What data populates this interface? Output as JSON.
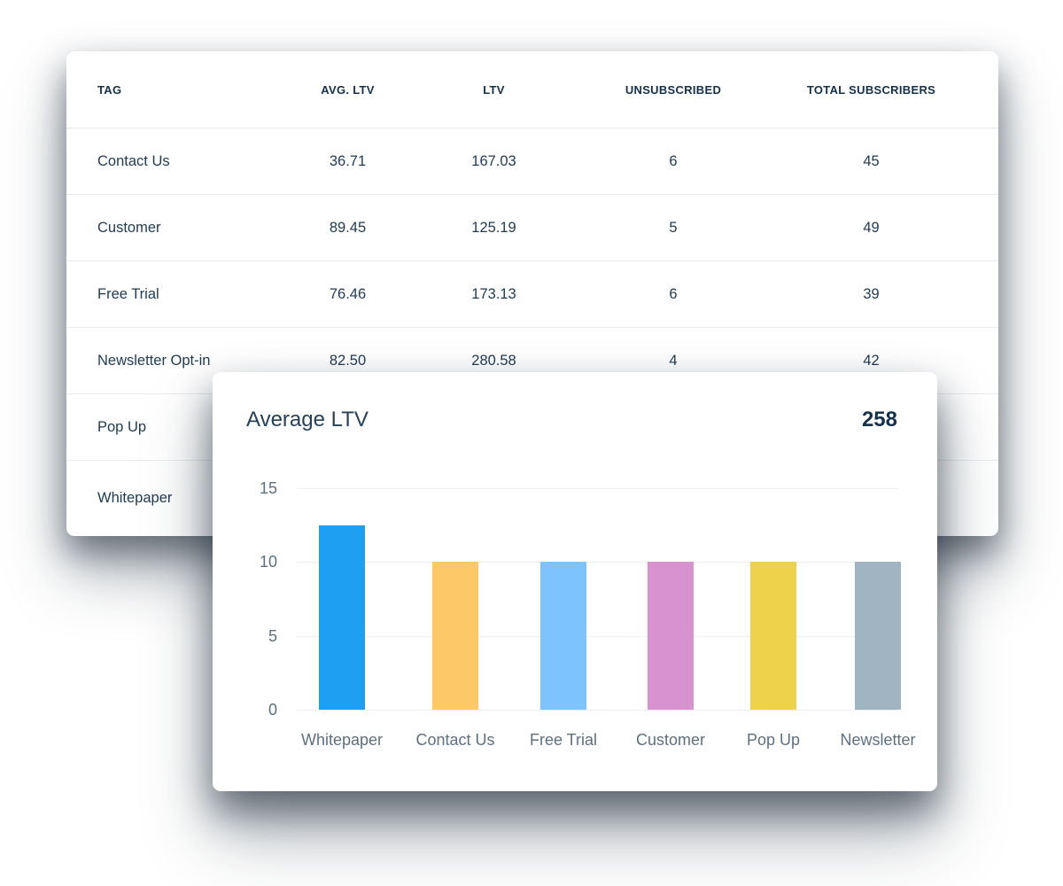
{
  "table": {
    "columns": [
      {
        "label": "TAG"
      },
      {
        "label": "AVG. LTV"
      },
      {
        "label": "LTV"
      },
      {
        "label": "UNSUBSCRIBED"
      },
      {
        "label": "TOTAL SUBSCRIBERS"
      }
    ],
    "rows": [
      {
        "tag": "Contact Us",
        "avg_ltv": "36.71",
        "ltv": "167.03",
        "unsubscribed": "6",
        "total_subscribers": "45"
      },
      {
        "tag": "Customer",
        "avg_ltv": "89.45",
        "ltv": "125.19",
        "unsubscribed": "5",
        "total_subscribers": "49"
      },
      {
        "tag": "Free Trial",
        "avg_ltv": "76.46",
        "ltv": "173.13",
        "unsubscribed": "6",
        "total_subscribers": "39"
      },
      {
        "tag": "Newsletter Opt-in",
        "avg_ltv": "82.50",
        "ltv": "280.58",
        "unsubscribed": "4",
        "total_subscribers": "42"
      },
      {
        "tag": "Pop Up",
        "avg_ltv": "",
        "ltv": "",
        "unsubscribed": "",
        "total_subscribers": ""
      },
      {
        "tag": "Whitepaper",
        "avg_ltv": "",
        "ltv": "",
        "unsubscribed": "",
        "total_subscribers": ""
      }
    ]
  },
  "chart_card": {
    "title": "Average LTV",
    "total_value": "258"
  },
  "chart_data": {
    "type": "bar",
    "title": "Average LTV",
    "annotation_total": "258",
    "categories": [
      "Whitepaper",
      "Contact Us",
      "Free Trial",
      "Customer",
      "Pop Up",
      "Newsletter"
    ],
    "values": [
      12.5,
      10,
      10,
      10,
      10,
      10
    ],
    "bar_colors": [
      "#1E9FF2",
      "#FDC868",
      "#7CC4FB",
      "#D992D0",
      "#EFD24B",
      "#A0B5C1"
    ],
    "y_ticks": [
      0,
      5,
      10,
      15
    ],
    "ylim": [
      0,
      15
    ],
    "grid": true,
    "legend": "none",
    "xlabel": "",
    "ylabel": ""
  },
  "colors": {
    "card_background": "#FFFFFF",
    "heading_text": "#14304A",
    "body_text": "#1E3A54",
    "axis_text": "#5C7082",
    "separator": "#E9ECEF",
    "gridline": "#ECEEF1"
  }
}
